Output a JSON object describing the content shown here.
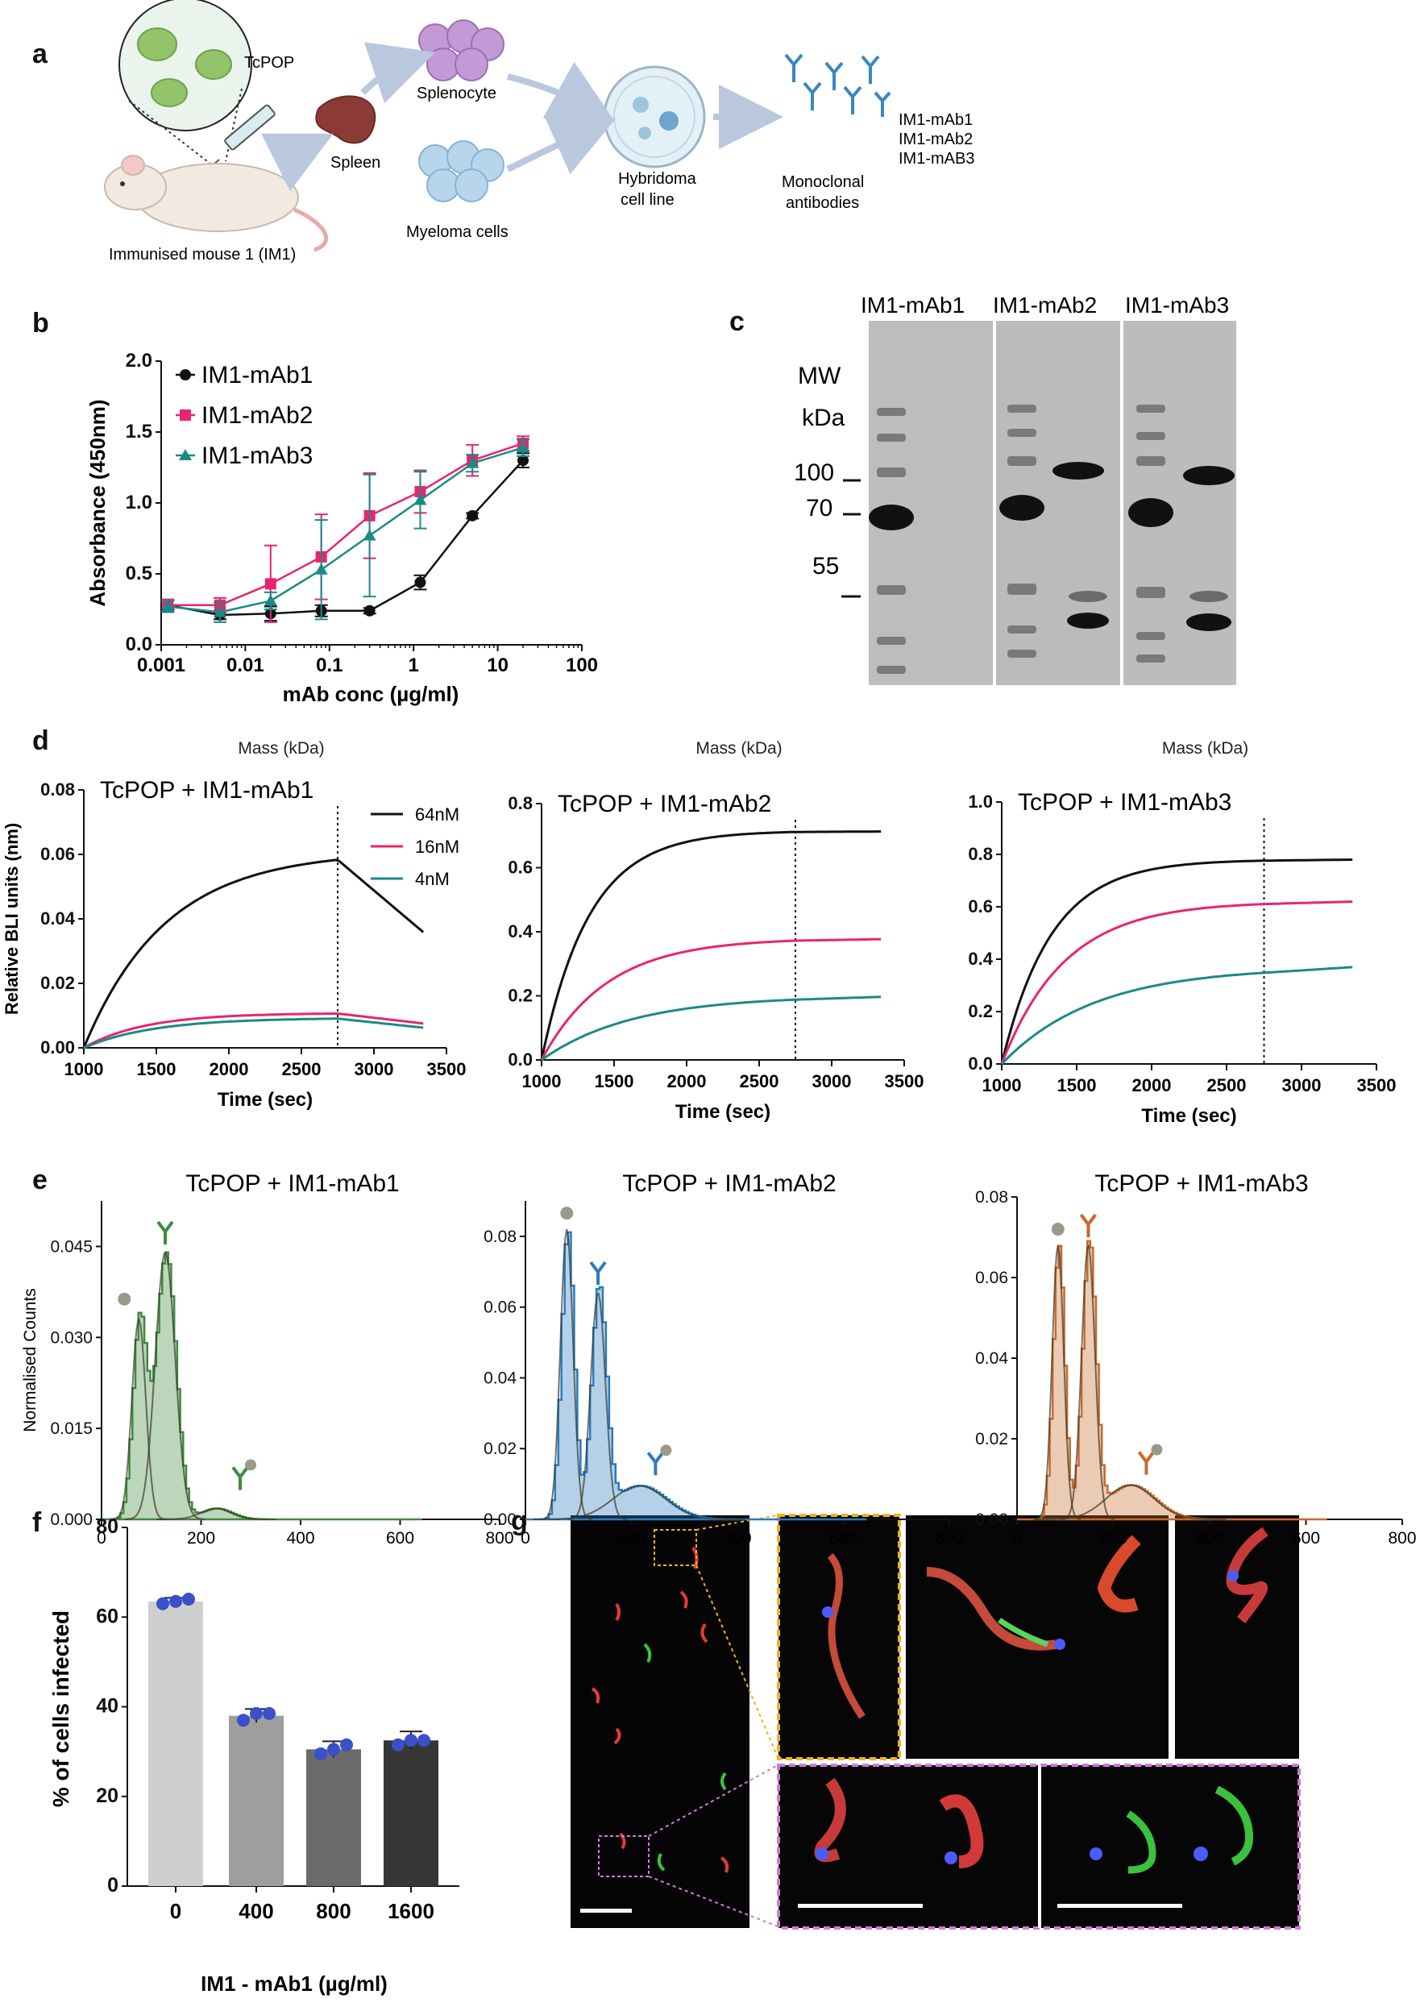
{
  "panels": {
    "a": {
      "label": "a",
      "tcpop": "TcPOP",
      "mouse": "Immunised mouse 1 (IM1)",
      "spleen": "Spleen",
      "splenocyte": "Splenocyte",
      "myeloma": "Myeloma cells",
      "hybridoma": [
        "Hybridoma",
        "cell line"
      ],
      "monoclonal": [
        "Monoclonal",
        "antibodies"
      ],
      "mabs": [
        "IM1-mAb1",
        "IM1-mAb2",
        "IM1-mAB3"
      ]
    },
    "b": {
      "label": "b"
    },
    "c": {
      "label": "c",
      "lanes": [
        "IM1-mAb1",
        "IM1-mAb2",
        "IM1-mAb3"
      ],
      "mw": [
        "MW",
        "kDa"
      ],
      "markers": [
        "100",
        "70",
        "55"
      ]
    },
    "d": {
      "label": "d"
    },
    "e": {
      "label": "e"
    },
    "f": {
      "label": "f"
    },
    "g": {
      "label": "g"
    }
  },
  "colors": {
    "black": "#111111",
    "pink": "#e8256e",
    "teal": "#1b8a86",
    "green": "#3f8a3f",
    "blue": "#2a7bbf",
    "orange": "#c96a2c",
    "bar0": "#cfcfcf",
    "bar1": "#9e9e9e",
    "bar2": "#6b6b6b",
    "bar3": "#363636"
  },
  "chart_data": [
    {
      "id": "b",
      "type": "line",
      "title": "",
      "xlabel": "mAb conc (µg/ml)",
      "ylabel": "Absorbance (450nm)",
      "xscale": "log",
      "xlim": [
        0.001,
        100
      ],
      "ylim": [
        0,
        2.0
      ],
      "xticks": [
        "0.001",
        "0.01",
        "0.1",
        "1",
        "10",
        "100"
      ],
      "yticks": [
        "0.0",
        "0.5",
        "1.0",
        "1.5",
        "2.0"
      ],
      "legend": "top-left",
      "series": [
        {
          "name": "IM1-mAb1",
          "marker": "circle",
          "color": "#111111",
          "x": [
            0.0012,
            0.005,
            0.02,
            0.08,
            0.3,
            1.2,
            5,
            20
          ],
          "y": [
            0.28,
            0.21,
            0.22,
            0.24,
            0.24,
            0.44,
            0.91,
            1.3
          ],
          "err": [
            0.03,
            0.03,
            0.05,
            0.04,
            0.02,
            0.05,
            0.02,
            0.05
          ]
        },
        {
          "name": "IM1-mAb2",
          "marker": "square",
          "color": "#e8256e",
          "x": [
            0.0012,
            0.005,
            0.02,
            0.08,
            0.3,
            1.2,
            5,
            20
          ],
          "y": [
            0.28,
            0.28,
            0.43,
            0.62,
            0.91,
            1.08,
            1.3,
            1.42
          ],
          "err": [
            0.04,
            0.05,
            0.27,
            0.3,
            0.3,
            0.15,
            0.11,
            0.05
          ]
        },
        {
          "name": "IM1-mAb3",
          "marker": "triangle",
          "color": "#1b8a86",
          "x": [
            0.0012,
            0.005,
            0.02,
            0.08,
            0.3,
            1.2,
            5,
            20
          ],
          "y": [
            0.27,
            0.23,
            0.31,
            0.53,
            0.77,
            1.02,
            1.28,
            1.39
          ],
          "err": [
            0.04,
            0.07,
            0.06,
            0.35,
            0.43,
            0.2,
            0.06,
            0.06
          ]
        }
      ]
    },
    {
      "id": "d1",
      "type": "line",
      "title": "TcPOP + IM1-mAb1",
      "toplabel": "Mass (kDa)",
      "xlabel": "Time (sec)",
      "ylabel": "Relative BLI units (nm)",
      "xlim": [
        1000,
        3500
      ],
      "ylim": [
        0,
        0.08
      ],
      "dissociation_start": 2750,
      "xticks": [
        "1000",
        "1500",
        "2000",
        "2500",
        "3000",
        "3500"
      ],
      "yticks": [
        "0.00",
        "0.02",
        "0.04",
        "0.06",
        "0.08"
      ],
      "legend": "top-right",
      "series": [
        {
          "name": "64nM",
          "color": "#111111",
          "plateau": 0.061,
          "tau": 560,
          "end": 0.0355,
          "t_end": 3350
        },
        {
          "name": "16nM",
          "color": "#e8256e",
          "plateau": 0.0108,
          "tau": 420,
          "end": 0.0075,
          "t_end": 3350
        },
        {
          "name": "4nM",
          "color": "#1b8a86",
          "plateau": 0.0093,
          "tau": 480,
          "end": 0.0062,
          "t_end": 3350
        }
      ]
    },
    {
      "id": "d2",
      "type": "line",
      "title": "TcPOP + IM1-mAb2",
      "toplabel": "Mass (kDa)",
      "xlabel": "Time (sec)",
      "ylabel": "",
      "xlim": [
        1000,
        3500
      ],
      "ylim": [
        0,
        0.8
      ],
      "dissociation_start": 2750,
      "xticks": [
        "1000",
        "1500",
        "2000",
        "2500",
        "3000",
        "3500"
      ],
      "yticks": [
        "0.0",
        "0.2",
        "0.4",
        "0.6",
        "0.8"
      ],
      "series": [
        {
          "name": "64nM",
          "color": "#111111",
          "plateau": 0.715,
          "tau": 330,
          "end": 0.713,
          "t_end": 3350
        },
        {
          "name": "16nM",
          "color": "#e8256e",
          "plateau": 0.38,
          "tau": 450,
          "end": 0.377,
          "t_end": 3350
        },
        {
          "name": "4nM",
          "color": "#1b8a86",
          "plateau": 0.2,
          "tau": 620,
          "end": 0.197,
          "t_end": 3350
        }
      ]
    },
    {
      "id": "d3",
      "type": "line",
      "title": "TcPOP + IM1-mAb3",
      "toplabel": "Mass (kDa)",
      "xlabel": "Time (sec)",
      "ylabel": "",
      "xlim": [
        1000,
        3500
      ],
      "ylim": [
        0,
        1.0
      ],
      "dissociation_start": 2750,
      "xticks": [
        "1000",
        "1500",
        "2000",
        "2500",
        "3000",
        "3500"
      ],
      "yticks": [
        "0.0",
        "0.2",
        "0.4",
        "0.6",
        "0.8",
        "1.0"
      ],
      "series": [
        {
          "name": "64nM",
          "color": "#111111",
          "plateau": 0.78,
          "tau": 330,
          "end": 0.78,
          "t_end": 3350
        },
        {
          "name": "16nM",
          "color": "#e8256e",
          "plateau": 0.62,
          "tau": 420,
          "end": 0.62,
          "t_end": 3350
        },
        {
          "name": "4nM",
          "color": "#1b8a86",
          "plateau": 0.37,
          "tau": 620,
          "end": 0.37,
          "t_end": 3350
        }
      ]
    },
    {
      "id": "e1",
      "type": "area",
      "title": "TcPOP + IM1-mAb1",
      "xlabel": "",
      "ylabel": "Normalised Counts",
      "xlim": [
        0,
        800
      ],
      "ylim": [
        0,
        0.0525
      ],
      "color": "#3f8a3f",
      "xticks": [
        "0",
        "200",
        "400",
        "600",
        "800"
      ],
      "yticks": [
        "0.000",
        "0.015",
        "0.030",
        "0.045"
      ],
      "peaks": [
        {
          "center": 75,
          "height": 0.033,
          "sigma": 14
        },
        {
          "center": 128,
          "height": 0.044,
          "sigma": 20
        },
        {
          "center": 230,
          "height": 0.0018,
          "sigma": 30
        }
      ]
    },
    {
      "id": "e2",
      "type": "area",
      "title": "TcPOP + IM1-mAb2",
      "xlabel": "",
      "ylabel": "",
      "xlim": [
        0,
        800
      ],
      "ylim": [
        0,
        0.09
      ],
      "color": "#2a7bbf",
      "xticks": [
        "0",
        "200",
        "400",
        "600",
        "800"
      ],
      "yticks": [
        "0.00",
        "0.02",
        "0.04",
        "0.06",
        "0.08"
      ],
      "peaks": [
        {
          "center": 78,
          "height": 0.082,
          "sigma": 12
        },
        {
          "center": 137,
          "height": 0.064,
          "sigma": 14
        },
        {
          "center": 215,
          "height": 0.0095,
          "sigma": 50
        }
      ]
    },
    {
      "id": "e3",
      "type": "area",
      "title": "TcPOP + IM1-mAb3",
      "xlabel": "",
      "ylabel": "",
      "xlim": [
        0,
        800
      ],
      "ylim": [
        0,
        0.08
      ],
      "color": "#c96a2c",
      "xticks": [
        "0",
        "200",
        "400",
        "600",
        "800"
      ],
      "yticks": [
        "0.00",
        "0.02",
        "0.04",
        "0.06",
        "0.08"
      ],
      "peaks": [
        {
          "center": 85,
          "height": 0.068,
          "sigma": 12
        },
        {
          "center": 148,
          "height": 0.068,
          "sigma": 14
        },
        {
          "center": 235,
          "height": 0.0085,
          "sigma": 50
        }
      ]
    },
    {
      "id": "f",
      "type": "bar",
      "title": "",
      "xlabel": "IM1 - mAb1 (µg/ml)",
      "ylabel": "% of cells infected",
      "categories": [
        "0",
        "400",
        "800",
        "1600"
      ],
      "values": [
        63.5,
        38,
        30.5,
        32.5
      ],
      "err": [
        0.8,
        1.5,
        1.8,
        2.0
      ],
      "points": [
        [
          63.0,
          63.5,
          64.0
        ],
        [
          37.0,
          38.5,
          38.5
        ],
        [
          29.5,
          30.5,
          31.5
        ],
        [
          31.5,
          32.5,
          32.5
        ]
      ],
      "ylim": [
        0,
        80
      ],
      "yticks": [
        "0",
        "20",
        "40",
        "60",
        "80"
      ]
    }
  ]
}
